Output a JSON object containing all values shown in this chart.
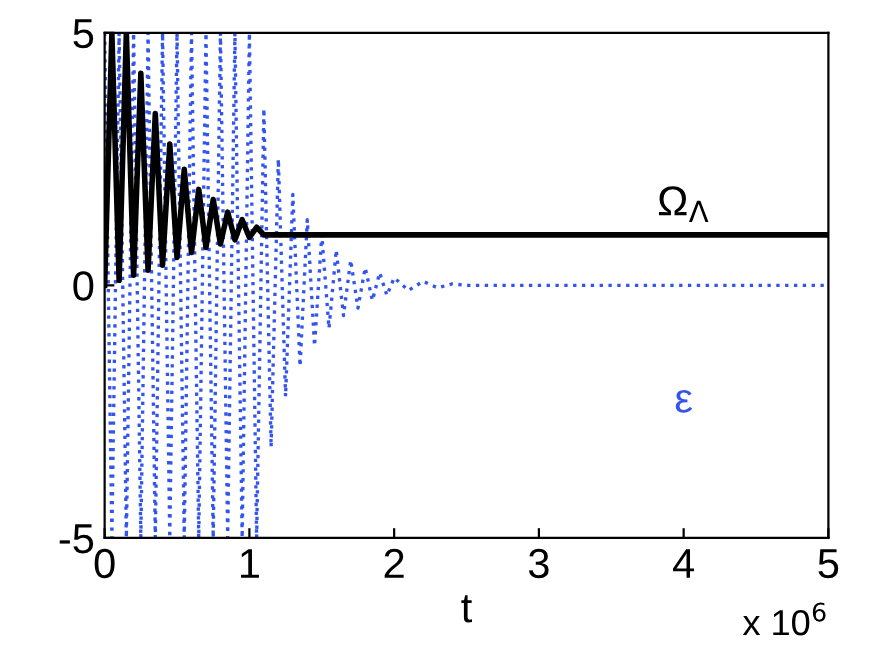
{
  "chart_data": {
    "type": "line",
    "xlabel": "t",
    "annotations": [
      "x 10$^{6}$"
    ],
    "xlim": [
      0,
      5
    ],
    "ylim": [
      -5,
      5
    ],
    "xticks": [
      0,
      1,
      2,
      3,
      4,
      5
    ],
    "yticks": [
      -5,
      0,
      5
    ],
    "grid": false,
    "legend": false,
    "marker": "none",
    "series": [
      {
        "name": "ε",
        "color": "#3355ee",
        "line_style": "dotted",
        "x": [
          0,
          0.05,
          0.1,
          0.15,
          0.2,
          0.25,
          0.3,
          0.35,
          0.4,
          0.45,
          0.5,
          0.55,
          0.6,
          0.65,
          0.7,
          0.75,
          0.8,
          0.85,
          0.9,
          0.95,
          1.0,
          1.05,
          1.1,
          1.15,
          1.2,
          1.25,
          1.3,
          1.35,
          1.4,
          1.45,
          1.5,
          1.55,
          1.6,
          1.65,
          1.7,
          1.75,
          1.8,
          1.85,
          1.9,
          1.95,
          2.0,
          2.1,
          2.2,
          2.3,
          2.4,
          2.5,
          5.0
        ],
        "values": [
          5,
          -5,
          5,
          -5,
          5,
          -5,
          5,
          -5,
          5,
          -5,
          5,
          -5,
          5,
          -5,
          5,
          -5,
          5,
          -5,
          5,
          -5,
          5,
          -5,
          3.5,
          -3.2,
          2.5,
          -2.2,
          1.8,
          -1.6,
          1.3,
          -1.2,
          1.0,
          -0.85,
          0.7,
          -0.6,
          0.5,
          -0.45,
          0.35,
          -0.3,
          0.25,
          -0.2,
          0.15,
          -0.1,
          0.08,
          -0.05,
          0.03,
          0,
          0
        ]
      },
      {
        "name": "Ω$_{Λ}$",
        "color": "#000000",
        "line_style": "solid",
        "x": [
          0,
          0.05,
          0.1,
          0.15,
          0.2,
          0.25,
          0.3,
          0.35,
          0.4,
          0.45,
          0.5,
          0.55,
          0.6,
          0.65,
          0.7,
          0.75,
          0.8,
          0.85,
          0.9,
          0.95,
          1.0,
          1.05,
          1.1,
          1.2,
          5.0
        ],
        "values": [
          0,
          5,
          0.1,
          5,
          0.2,
          4.2,
          0.3,
          3.4,
          0.4,
          2.8,
          0.55,
          2.3,
          0.65,
          1.9,
          0.75,
          1.7,
          0.82,
          1.45,
          0.9,
          1.3,
          0.95,
          1.15,
          1.0,
          1.0,
          1.0
        ]
      }
    ]
  }
}
